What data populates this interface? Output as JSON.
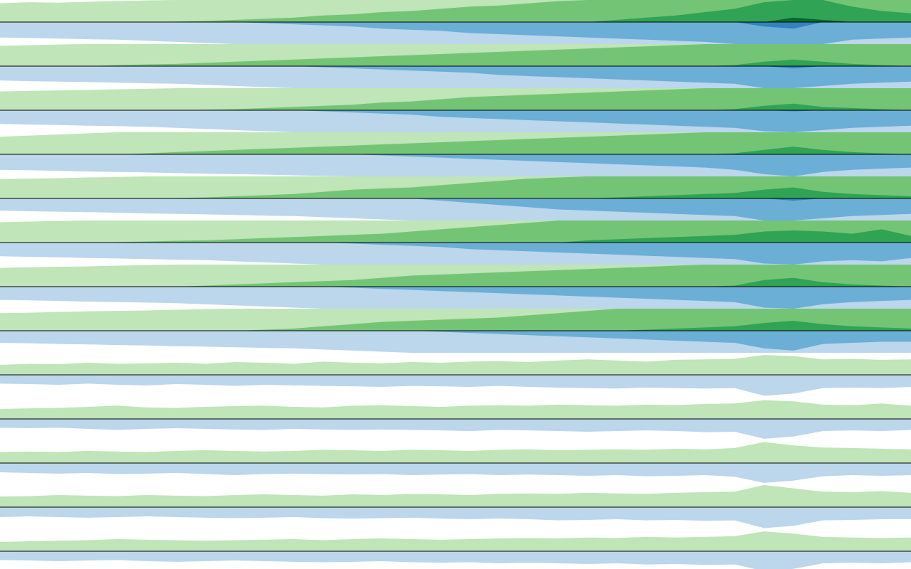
{
  "chart_data": {
    "type": "horizon",
    "ylim": [
      0,
      1
    ],
    "up_colors": [
      "#bfe5b8",
      "#74c476",
      "#31a354",
      "#006d2c"
    ],
    "down_colors": [
      "#bcd6ec",
      "#6baed6",
      "#3182bd",
      "#08519c"
    ],
    "series": [
      {
        "up": [
          0.85,
          0.9,
          0.88,
          0.92,
          0.95,
          0.98,
          1.02,
          1.05,
          1.1,
          1.15,
          1.2,
          1.3,
          1.35,
          1.45,
          1.5,
          1.6,
          1.7,
          1.75,
          1.85,
          1.95,
          2.0,
          2.1,
          2.2,
          2.3,
          2.45,
          2.6,
          2.9,
          3.2,
          3.1,
          2.7,
          2.5,
          2.4
        ],
        "down": [
          0.7,
          0.72,
          0.75,
          0.78,
          0.8,
          0.85,
          0.9,
          0.95,
          1.0,
          1.05,
          1.1,
          1.15,
          1.2,
          1.3,
          1.35,
          1.4,
          1.5,
          1.55,
          1.6,
          1.65,
          1.7,
          1.75,
          1.8,
          1.85,
          1.9,
          2.0,
          2.2,
          2.3,
          2.0,
          1.8,
          1.75,
          1.7
        ]
      },
      {
        "up": [
          0.92,
          0.95,
          0.98,
          1.0,
          1.05,
          1.08,
          1.1,
          1.15,
          1.2,
          1.25,
          1.3,
          1.35,
          1.4,
          1.45,
          1.5,
          1.55,
          1.6,
          1.65,
          1.7,
          1.75,
          1.8,
          1.85,
          1.9,
          1.95,
          2.0,
          2.05,
          2.2,
          2.3,
          2.2,
          2.1,
          2.05,
          2.0
        ],
        "down": [
          0.65,
          0.68,
          0.7,
          0.72,
          0.75,
          0.78,
          0.8,
          0.85,
          0.9,
          0.95,
          1.0,
          1.05,
          1.1,
          1.15,
          1.2,
          1.25,
          1.3,
          1.4,
          1.45,
          1.5,
          1.55,
          1.6,
          1.65,
          1.7,
          1.75,
          1.8,
          2.0,
          2.1,
          1.9,
          1.8,
          1.75,
          1.7
        ]
      },
      {
        "up": [
          0.85,
          0.88,
          0.9,
          0.92,
          0.95,
          0.97,
          1.0,
          1.02,
          1.05,
          1.1,
          1.15,
          1.2,
          1.25,
          1.35,
          1.4,
          1.5,
          1.6,
          1.65,
          1.7,
          1.75,
          1.8,
          1.85,
          1.9,
          1.95,
          2.0,
          2.05,
          2.2,
          2.3,
          2.15,
          2.1,
          2.05,
          2.0
        ],
        "down": [
          0.62,
          0.65,
          0.67,
          0.7,
          0.72,
          0.75,
          0.8,
          0.85,
          0.9,
          0.95,
          1.0,
          1.05,
          1.1,
          1.15,
          1.2,
          1.3,
          1.35,
          1.4,
          1.45,
          1.5,
          1.55,
          1.6,
          1.65,
          1.7,
          1.75,
          1.8,
          1.95,
          2.05,
          1.9,
          1.8,
          1.75,
          1.7
        ]
      },
      {
        "up": [
          0.8,
          0.85,
          0.9,
          0.95,
          1.0,
          1.05,
          1.1,
          1.15,
          1.2,
          1.25,
          1.3,
          1.35,
          1.4,
          1.45,
          1.5,
          1.55,
          1.6,
          1.65,
          1.7,
          1.75,
          1.8,
          1.85,
          1.9,
          1.95,
          2.0,
          2.05,
          2.2,
          2.35,
          2.2,
          2.1,
          2.05,
          2.0
        ],
        "down": [
          0.7,
          0.72,
          0.75,
          0.78,
          0.8,
          0.82,
          0.85,
          0.88,
          0.9,
          0.92,
          0.95,
          0.98,
          1.0,
          1.05,
          1.1,
          1.15,
          1.2,
          1.25,
          1.3,
          1.35,
          1.4,
          1.45,
          1.5,
          1.55,
          1.6,
          1.7,
          1.9,
          2.0,
          1.8,
          1.7,
          1.65,
          1.6
        ]
      },
      {
        "up": [
          0.88,
          0.9,
          0.92,
          0.95,
          0.97,
          1.0,
          1.02,
          1.05,
          1.1,
          1.15,
          1.2,
          1.3,
          1.4,
          1.45,
          1.5,
          1.6,
          1.7,
          1.8,
          1.9,
          1.95,
          2.0,
          2.05,
          2.1,
          2.15,
          2.2,
          2.25,
          2.4,
          2.5,
          2.3,
          2.2,
          2.15,
          2.1
        ],
        "down": [
          0.55,
          0.58,
          0.6,
          0.62,
          0.65,
          0.68,
          0.7,
          0.72,
          0.75,
          0.78,
          0.8,
          0.85,
          0.9,
          0.95,
          1.0,
          1.1,
          1.2,
          1.3,
          1.4,
          1.5,
          1.55,
          1.6,
          1.65,
          1.7,
          1.75,
          1.8,
          2.0,
          2.1,
          1.9,
          1.8,
          1.75,
          1.7
        ]
      },
      {
        "up": [
          0.92,
          0.95,
          0.98,
          1.0,
          1.02,
          1.05,
          1.08,
          1.1,
          1.15,
          1.2,
          1.25,
          1.3,
          1.35,
          1.4,
          1.5,
          1.6,
          1.7,
          1.8,
          1.9,
          2.0,
          2.1,
          2.15,
          2.2,
          2.25,
          2.3,
          2.35,
          2.5,
          2.55,
          2.5,
          2.4,
          2.6,
          2.3
        ],
        "down": [
          0.62,
          0.65,
          0.67,
          0.7,
          0.72,
          0.75,
          0.78,
          0.8,
          0.85,
          0.9,
          0.95,
          1.0,
          1.05,
          1.1,
          1.15,
          1.2,
          1.3,
          1.35,
          1.4,
          1.45,
          1.5,
          1.55,
          1.6,
          1.65,
          1.7,
          1.75,
          1.95,
          2.0,
          1.85,
          1.8,
          1.85,
          1.7
        ]
      },
      {
        "up": [
          0.85,
          0.88,
          0.9,
          0.92,
          0.95,
          0.98,
          1.0,
          1.05,
          1.1,
          1.15,
          1.2,
          1.25,
          1.3,
          1.4,
          1.5,
          1.55,
          1.6,
          1.65,
          1.7,
          1.75,
          1.8,
          1.85,
          1.9,
          1.95,
          2.0,
          2.05,
          2.3,
          2.4,
          2.2,
          2.1,
          2.05,
          2.0
        ],
        "down": [
          0.6,
          0.62,
          0.65,
          0.68,
          0.7,
          0.72,
          0.75,
          0.8,
          0.85,
          0.9,
          0.95,
          1.0,
          1.05,
          1.1,
          1.15,
          1.2,
          1.25,
          1.3,
          1.35,
          1.4,
          1.45,
          1.5,
          1.55,
          1.6,
          1.65,
          1.7,
          1.95,
          2.0,
          1.8,
          1.7,
          1.65,
          1.6
        ]
      },
      {
        "up": [
          0.8,
          0.82,
          0.85,
          0.88,
          0.9,
          0.92,
          0.95,
          0.98,
          1.0,
          1.05,
          1.1,
          1.2,
          1.3,
          1.4,
          1.45,
          1.5,
          1.55,
          1.6,
          1.7,
          1.8,
          1.9,
          2.0,
          2.05,
          2.1,
          2.15,
          2.2,
          2.35,
          2.45,
          2.3,
          2.2,
          2.15,
          2.1
        ],
        "down": [
          0.55,
          0.57,
          0.6,
          0.62,
          0.65,
          0.67,
          0.7,
          0.72,
          0.75,
          0.78,
          0.8,
          0.85,
          0.9,
          0.95,
          1.0,
          1.05,
          1.1,
          1.15,
          1.2,
          1.25,
          1.3,
          1.35,
          1.4,
          1.45,
          1.5,
          1.55,
          1.8,
          1.9,
          1.6,
          1.55,
          1.5,
          1.5
        ]
      },
      {
        "up": [
          0.45,
          0.5,
          0.48,
          0.55,
          0.5,
          0.52,
          0.55,
          0.5,
          0.58,
          0.55,
          0.5,
          0.6,
          0.55,
          0.52,
          0.58,
          0.55,
          0.6,
          0.62,
          0.58,
          0.65,
          0.7,
          0.65,
          0.6,
          0.68,
          0.7,
          0.72,
          0.9,
          0.85,
          0.7,
          0.72,
          0.68,
          0.7
        ],
        "down": [
          0.4,
          0.42,
          0.45,
          0.4,
          0.45,
          0.48,
          0.42,
          0.45,
          0.5,
          0.45,
          0.48,
          0.5,
          0.52,
          0.55,
          0.5,
          0.52,
          0.55,
          0.5,
          0.55,
          0.58,
          0.6,
          0.62,
          0.58,
          0.6,
          0.62,
          0.6,
          0.95,
          0.85,
          0.6,
          0.58,
          0.6,
          0.55
        ]
      },
      {
        "up": [
          0.45,
          0.48,
          0.5,
          0.55,
          0.6,
          0.52,
          0.5,
          0.55,
          0.58,
          0.6,
          0.55,
          0.52,
          0.6,
          0.62,
          0.58,
          0.55,
          0.6,
          0.62,
          0.6,
          0.65,
          0.62,
          0.6,
          0.65,
          0.62,
          0.68,
          0.7,
          0.85,
          0.8,
          0.65,
          0.62,
          0.7,
          0.6
        ],
        "down": [
          0.4,
          0.42,
          0.4,
          0.45,
          0.5,
          0.45,
          0.42,
          0.45,
          0.48,
          0.5,
          0.45,
          0.48,
          0.5,
          0.48,
          0.5,
          0.52,
          0.55,
          0.5,
          0.52,
          0.55,
          0.58,
          0.55,
          0.52,
          0.55,
          0.6,
          0.58,
          0.9,
          0.8,
          0.55,
          0.52,
          0.55,
          0.5
        ]
      },
      {
        "up": [
          0.5,
          0.52,
          0.5,
          0.55,
          0.52,
          0.5,
          0.55,
          0.58,
          0.55,
          0.52,
          0.55,
          0.6,
          0.58,
          0.55,
          0.6,
          0.58,
          0.55,
          0.6,
          0.62,
          0.58,
          0.6,
          0.62,
          0.6,
          0.65,
          0.62,
          0.68,
          0.95,
          0.8,
          0.7,
          0.68,
          0.65,
          0.62
        ],
        "down": [
          0.42,
          0.45,
          0.48,
          0.45,
          0.5,
          0.48,
          0.45,
          0.5,
          0.55,
          0.5,
          0.48,
          0.5,
          0.52,
          0.5,
          0.55,
          0.52,
          0.5,
          0.55,
          0.52,
          0.55,
          0.58,
          0.55,
          0.6,
          0.58,
          0.55,
          0.62,
          0.9,
          0.8,
          0.6,
          0.55,
          0.58,
          0.55
        ]
      },
      {
        "up": [
          0.48,
          0.5,
          0.55,
          0.52,
          0.5,
          0.55,
          0.52,
          0.5,
          0.55,
          0.58,
          0.55,
          0.52,
          0.58,
          0.55,
          0.6,
          0.58,
          0.55,
          0.6,
          0.62,
          0.6,
          0.65,
          0.62,
          0.6,
          0.65,
          0.68,
          0.7,
          1.0,
          0.85,
          0.7,
          0.68,
          0.72,
          0.65
        ],
        "down": [
          0.45,
          0.42,
          0.45,
          0.48,
          0.45,
          0.42,
          0.45,
          0.48,
          0.5,
          0.48,
          0.45,
          0.5,
          0.52,
          0.5,
          0.48,
          0.52,
          0.55,
          0.52,
          0.55,
          0.6,
          0.58,
          0.55,
          0.6,
          0.58,
          0.62,
          0.6,
          0.95,
          0.85,
          0.6,
          0.58,
          0.55,
          0.55
        ]
      },
      {
        "up": [
          0.42,
          0.45,
          0.48,
          0.5,
          0.55,
          0.52,
          0.5,
          0.48,
          0.5,
          0.52,
          0.55,
          0.5,
          0.55,
          0.58,
          0.55,
          0.52,
          0.55,
          0.58,
          0.6,
          0.58,
          0.62,
          0.6,
          0.65,
          0.62,
          0.65,
          0.68,
          0.9,
          0.8,
          0.65,
          0.62,
          0.6,
          0.62
        ],
        "down": [
          0.4,
          0.42,
          0.45,
          0.42,
          0.4,
          0.45,
          0.48,
          0.45,
          0.42,
          0.45,
          0.48,
          0.5,
          0.48,
          0.45,
          0.5,
          0.52,
          0.5,
          0.55,
          0.52,
          0.55,
          0.58,
          0.55,
          0.6,
          0.58,
          0.62,
          0.6,
          0.9,
          0.8,
          0.55,
          0.52,
          0.55,
          0.5
        ]
      }
    ]
  }
}
